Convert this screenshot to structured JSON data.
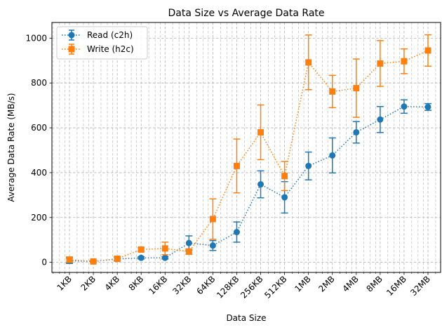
{
  "chart_data": {
    "type": "line",
    "title": "Data Size vs Average Data Rate",
    "xlabel": "Data Size",
    "ylabel": "Average Data Rate (MB/s)",
    "ylim": [
      -45,
      1070
    ],
    "yticks": [
      0,
      200,
      400,
      600,
      800,
      1000
    ],
    "x_scale": "log2",
    "grid": true,
    "legend_position": "top-left",
    "categories": [
      "1KB",
      "2KB",
      "4KB",
      "8KB",
      "16KB",
      "32KB",
      "64KB",
      "128KB",
      "256KB",
      "512KB",
      "1MB",
      "2MB",
      "4MB",
      "8MB",
      "16MB",
      "32MB"
    ],
    "series": [
      {
        "name": "Read (c2h)",
        "color": "#1f77b4",
        "marker": "circle",
        "values": [
          7,
          4,
          15,
          20,
          20,
          86,
          75,
          135,
          348,
          290,
          430,
          477,
          580,
          637,
          695,
          693
        ],
        "errors": [
          12,
          4,
          8,
          5,
          5,
          32,
          22,
          45,
          60,
          70,
          62,
          78,
          48,
          58,
          30,
          15
        ]
      },
      {
        "name": "Write (h2c)",
        "color": "#ff7f0e",
        "marker": "square",
        "values": [
          12,
          4,
          16,
          57,
          62,
          48,
          193,
          430,
          580,
          385,
          892,
          762,
          777,
          887,
          897,
          945
        ],
        "errors": [
          12,
          4,
          8,
          8,
          28,
          12,
          90,
          120,
          122,
          65,
          122,
          72,
          130,
          102,
          55,
          70
        ]
      }
    ]
  }
}
